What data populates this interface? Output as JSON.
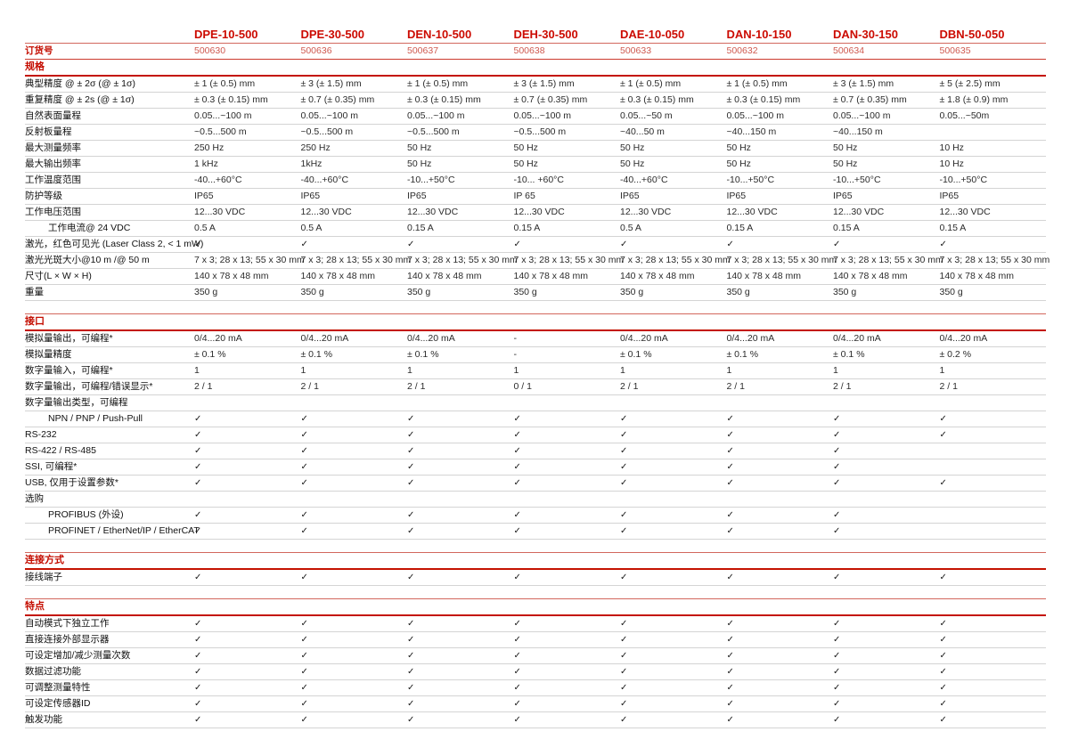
{
  "colors": {
    "brand_red": "#cc0a00",
    "order_number_red": "#cf5a50",
    "section_rule_red": "#c41200",
    "row_rule_gray": "#d4d4d4",
    "text": "#2b2b2b",
    "background": "#ffffff"
  },
  "glyphs": {
    "check": "✓"
  },
  "header": {
    "products": [
      "DPE-10-500",
      "DPE-30-500",
      "DEN-10-500",
      "DEH-30-500",
      "DAE-10-050",
      "DAN-10-150",
      "DAN-30-150",
      "DBN-50-050"
    ]
  },
  "order_row": {
    "label": "订货号",
    "values": [
      "500630",
      "500636",
      "500637",
      "500638",
      "500633",
      "500632",
      "500634",
      "500635"
    ]
  },
  "sections": [
    {
      "title": "规格",
      "rows": [
        {
          "label": "典型精度 @ ± 2σ (@ ± 1σ)",
          "values": [
            "± 1 (± 0.5) mm",
            "± 3 (± 1.5) mm",
            "± 1 (± 0.5) mm",
            "± 3 (± 1.5) mm",
            "± 1 (± 0.5) mm",
            "± 1 (± 0.5) mm",
            "± 3 (± 1.5) mm",
            "± 5 (± 2.5) mm"
          ]
        },
        {
          "label": "重复精度 @ ± 2s (@ ± 1σ)",
          "values": [
            "± 0.3 (± 0.15) mm",
            "± 0.7 (± 0.35) mm",
            "± 0.3 (± 0.15) mm",
            "± 0.7 (± 0.35) mm",
            "± 0.3 (± 0.15) mm",
            "± 0.3 (± 0.15) mm",
            "± 0.7 (± 0.35) mm",
            "± 1.8 (± 0.9) mm"
          ]
        },
        {
          "label": "自然表面量程",
          "values": [
            "0.05...~100 m",
            "0.05...~100 m",
            "0.05...~100 m",
            "0.05...~100 m",
            "0.05...~50 m",
            "0.05...~100 m",
            "0.05...~100 m",
            "0.05...~50m"
          ]
        },
        {
          "label": "反射板量程",
          "values": [
            "~0.5...500 m",
            "~0.5...500 m",
            "~0.5...500 m",
            "~0.5...500 m",
            "~40...50 m",
            "~40...150 m",
            "~40...150 m",
            ""
          ]
        },
        {
          "label": "最大测量频率",
          "values": [
            "250 Hz",
            "250 Hz",
            "50 Hz",
            "50 Hz",
            "50 Hz",
            "50 Hz",
            "50 Hz",
            "10 Hz"
          ]
        },
        {
          "label": "最大输出频率",
          "values": [
            "1 kHz",
            "1kHz",
            "50 Hz",
            "50 Hz",
            "50 Hz",
            "50 Hz",
            "50 Hz",
            "10 Hz"
          ]
        },
        {
          "label": "工作温度范围",
          "values": [
            "-40...+60°C",
            "-40...+60°C",
            "-10...+50°C",
            "-10... +60°C",
            "-40...+60°C",
            "-10...+50°C",
            "-10...+50°C",
            "-10...+50°C"
          ]
        },
        {
          "label": "防护等级",
          "values": [
            "IP65",
            "IP65",
            "IP65",
            "IP 65",
            "IP65",
            "IP65",
            "IP65",
            "IP65"
          ]
        },
        {
          "label": "工作电压范围",
          "values": [
            "12...30 VDC",
            "12...30 VDC",
            "12...30 VDC",
            "12...30 VDC",
            "12...30 VDC",
            "12...30 VDC",
            "12...30 VDC",
            "12...30 VDC"
          ]
        },
        {
          "label": "工作电流@ 24 VDC",
          "indent": true,
          "values": [
            "0.5 A",
            "0.5 A",
            "0.15 A",
            "0.15 A",
            "0.5 A",
            "0.15 A",
            "0.15 A",
            "0.15 A"
          ]
        },
        {
          "label": "激光，红色可见光 (Laser Class 2, < 1 mW)",
          "values": [
            "✓",
            "✓",
            "✓",
            "✓",
            "✓",
            "✓",
            "✓",
            "✓"
          ]
        },
        {
          "label": "激光光斑大小@10 m /@ 50 m",
          "values": [
            "7 x 3; 28 x 13; 55 x 30 mm",
            "7 x 3; 28 x 13; 55 x 30 mm",
            "7 x 3; 28 x 13; 55 x 30 mm",
            "7 x 3; 28 x 13; 55 x 30 mm",
            "7 x 3; 28 x 13; 55 x 30 mm",
            "7 x 3; 28 x 13; 55 x 30 mm",
            "7 x 3; 28 x 13; 55 x 30 mm",
            "7 x 3; 28 x 13; 55 x 30 mm"
          ]
        },
        {
          "label": "尺寸(L × W × H)",
          "values": [
            "140 x 78 x 48 mm",
            "140 x 78 x 48 mm",
            "140 x 78 x 48 mm",
            "140 x 78 x 48 mm",
            "140 x 78 x 48 mm",
            "140 x 78 x 48 mm",
            "140 x 78 x 48 mm",
            "140 x 78 x 48 mm"
          ]
        },
        {
          "label": "重量",
          "values": [
            "350 g",
            "350 g",
            "350 g",
            "350 g",
            "350 g",
            "350 g",
            "350 g",
            "350 g"
          ]
        }
      ]
    },
    {
      "title": "接口",
      "rows": [
        {
          "label": "模拟量输出，可编程*",
          "values": [
            "0/4...20 mA",
            "0/4...20 mA",
            "0/4...20 mA",
            "-",
            "0/4...20 mA",
            "0/4...20 mA",
            "0/4...20 mA",
            "0/4...20 mA"
          ]
        },
        {
          "label": "模拟量精度",
          "values": [
            "± 0.1 %",
            "± 0.1 %",
            "± 0.1 %",
            "-",
            "± 0.1 %",
            "± 0.1 %",
            "± 0.1 %",
            "± 0.2 %"
          ]
        },
        {
          "label": "数字量输入，可编程*",
          "values": [
            "1",
            "1",
            "1",
            "1",
            "1",
            "1",
            "1",
            "1"
          ]
        },
        {
          "label": "数字量输出，可编程/错误显示*",
          "values": [
            "2 / 1",
            "2 / 1",
            "2 / 1",
            "0 / 1",
            "2 / 1",
            "2 / 1",
            "2 / 1",
            "2 / 1"
          ]
        },
        {
          "label": "数字量输出类型，可编程",
          "subhead": true,
          "values": [
            "",
            "",
            "",
            "",
            "",
            "",
            "",
            ""
          ]
        },
        {
          "label": "NPN / PNP / Push-Pull",
          "indent": true,
          "values": [
            "✓",
            "✓",
            "✓",
            "✓",
            "✓",
            "✓",
            "✓",
            "✓"
          ]
        },
        {
          "label": "RS-232",
          "values": [
            "✓",
            "✓",
            "✓",
            "✓",
            "✓",
            "✓",
            "✓",
            "✓"
          ]
        },
        {
          "label": "RS-422 / RS-485",
          "values": [
            "✓",
            "✓",
            "✓",
            "✓",
            "✓",
            "✓",
            "✓",
            ""
          ]
        },
        {
          "label": "SSI, 可编程*",
          "values": [
            "✓",
            "✓",
            "✓",
            "✓",
            "✓",
            "✓",
            "✓",
            ""
          ]
        },
        {
          "label": "USB, 仅用于设置参数*",
          "values": [
            "✓",
            "✓",
            "✓",
            "✓",
            "✓",
            "✓",
            "✓",
            "✓"
          ]
        },
        {
          "label": "选购",
          "subhead": true,
          "values": [
            "",
            "",
            "",
            "",
            "",
            "",
            "",
            ""
          ]
        },
        {
          "label": "PROFIBUS (外设)",
          "indent": true,
          "values": [
            "✓",
            "✓",
            "✓",
            "✓",
            "✓",
            "✓",
            "✓",
            ""
          ]
        },
        {
          "label": "PROFINET / EtherNet/IP / EtherCAT",
          "indent": true,
          "values": [
            "✓",
            "✓",
            "✓",
            "✓",
            "✓",
            "✓",
            "✓",
            ""
          ]
        }
      ]
    },
    {
      "title": "连接方式",
      "rows": [
        {
          "label": "接线端子",
          "values": [
            "✓",
            "✓",
            "✓",
            "✓",
            "✓",
            "✓",
            "✓",
            "✓"
          ]
        }
      ]
    },
    {
      "title": "特点",
      "rows": [
        {
          "label": "自动模式下独立工作",
          "values": [
            "✓",
            "✓",
            "✓",
            "✓",
            "✓",
            "✓",
            "✓",
            "✓"
          ]
        },
        {
          "label": "直接连接外部显示器",
          "values": [
            "✓",
            "✓",
            "✓",
            "✓",
            "✓",
            "✓",
            "✓",
            "✓"
          ]
        },
        {
          "label": "可设定增加/减少测量次数",
          "values": [
            "✓",
            "✓",
            "✓",
            "✓",
            "✓",
            "✓",
            "✓",
            "✓"
          ]
        },
        {
          "label": "数据过滤功能",
          "values": [
            "✓",
            "✓",
            "✓",
            "✓",
            "✓",
            "✓",
            "✓",
            "✓"
          ]
        },
        {
          "label": "可调整测量特性",
          "values": [
            "✓",
            "✓",
            "✓",
            "✓",
            "✓",
            "✓",
            "✓",
            "✓"
          ]
        },
        {
          "label": "可设定传感器ID",
          "values": [
            "✓",
            "✓",
            "✓",
            "✓",
            "✓",
            "✓",
            "✓",
            "✓"
          ]
        },
        {
          "label": "触发功能",
          "values": [
            "✓",
            "✓",
            "✓",
            "✓",
            "✓",
            "✓",
            "✓",
            "✓"
          ]
        }
      ]
    }
  ]
}
